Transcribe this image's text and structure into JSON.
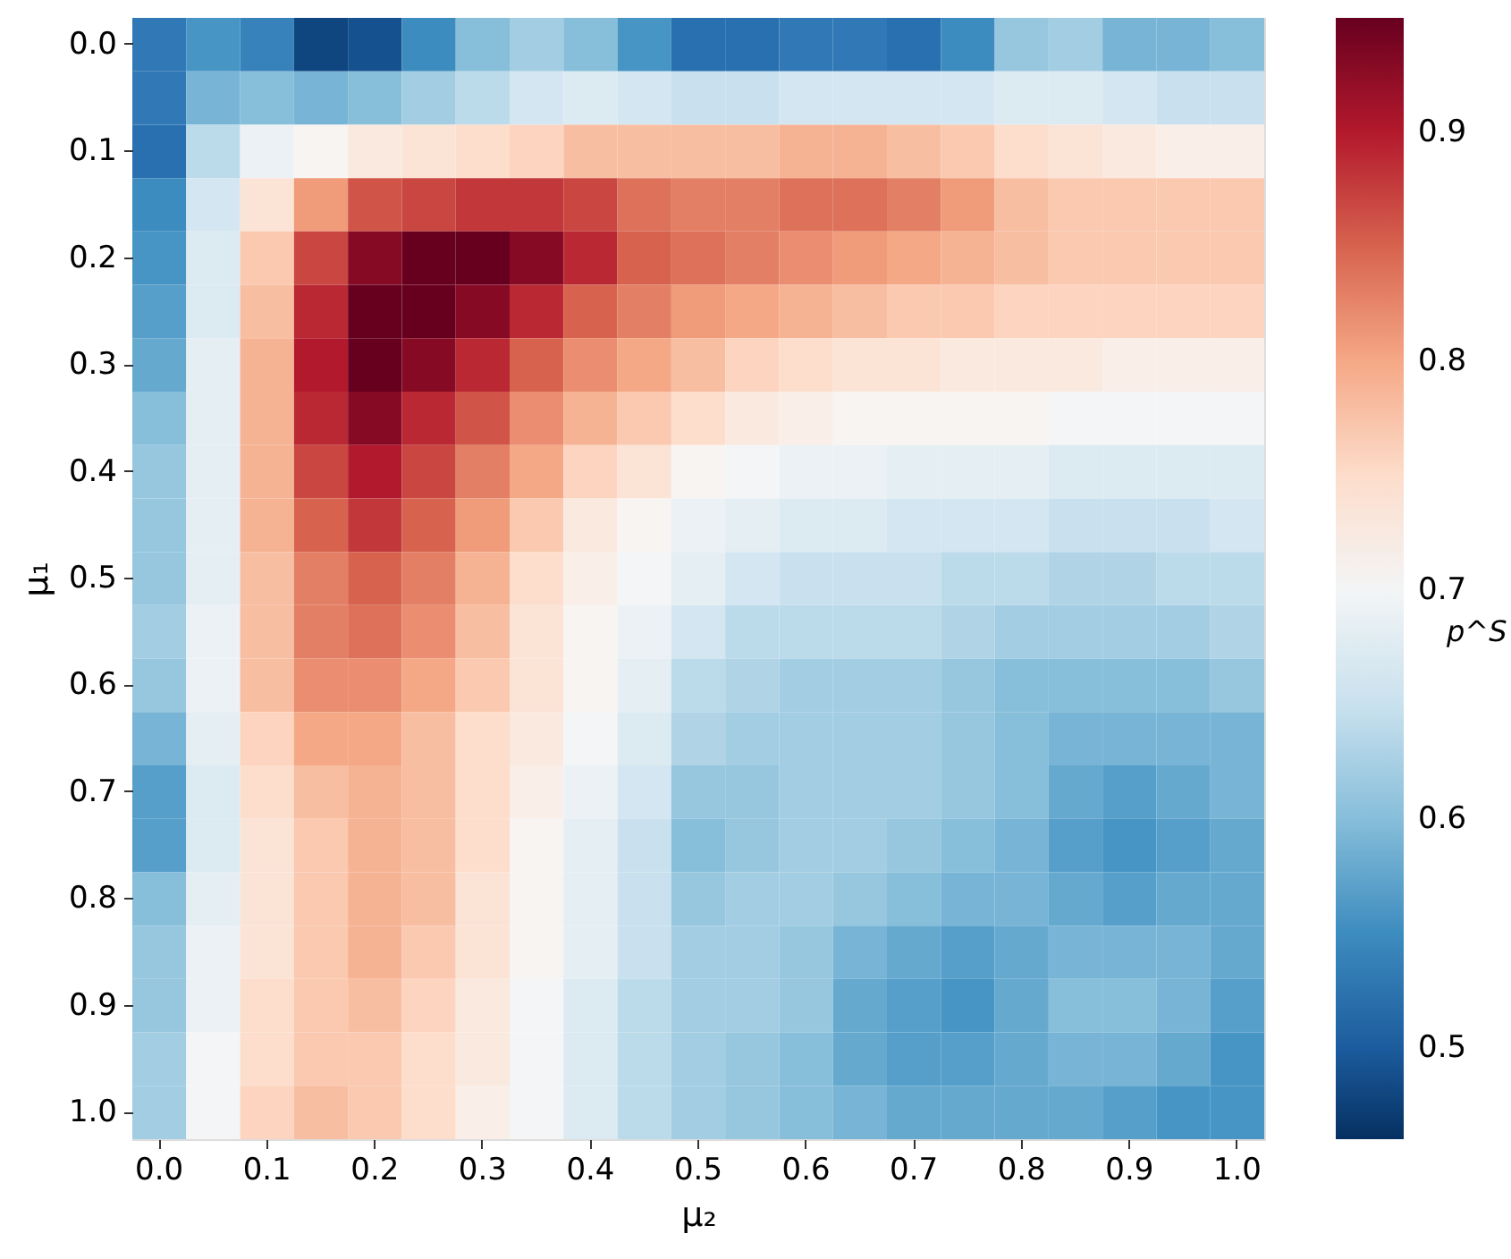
{
  "chart_data": {
    "type": "heatmap",
    "xlabel": "μ₂",
    "ylabel": "μ₁",
    "clabel": "p^S",
    "categories": [
      "0.0",
      null,
      "0.1",
      null,
      "0.2",
      null,
      "0.3",
      null,
      "0.4",
      null,
      "0.5",
      null,
      "0.6",
      null,
      "0.7",
      null,
      "0.8",
      null,
      "0.9",
      null,
      "1.0"
    ],
    "y_categories": [
      "0.0",
      null,
      "0.1",
      null,
      "0.2",
      null,
      "0.3",
      null,
      "0.4",
      null,
      "0.5",
      null,
      "0.6",
      null,
      "0.7",
      null,
      "0.8",
      null,
      "0.9",
      null,
      "1.0"
    ],
    "clim": [
      0.46,
      0.95
    ],
    "cticks": [
      0.5,
      0.6,
      0.7,
      0.8,
      0.9
    ],
    "cells": [
      [
        0.53,
        0.56,
        0.54,
        0.48,
        0.49,
        0.55,
        0.6,
        0.62,
        0.6,
        0.56,
        0.52,
        0.52,
        0.53,
        0.53,
        0.52,
        0.55,
        0.61,
        0.62,
        0.59,
        0.59,
        0.6
      ],
      [
        0.53,
        0.59,
        0.6,
        0.59,
        0.6,
        0.62,
        0.64,
        0.66,
        0.67,
        0.66,
        0.65,
        0.65,
        0.66,
        0.66,
        0.66,
        0.66,
        0.67,
        0.67,
        0.66,
        0.65,
        0.65
      ],
      [
        0.52,
        0.64,
        0.69,
        0.71,
        0.73,
        0.74,
        0.75,
        0.76,
        0.78,
        0.78,
        0.78,
        0.78,
        0.79,
        0.79,
        0.78,
        0.77,
        0.75,
        0.74,
        0.73,
        0.72,
        0.72
      ],
      [
        0.55,
        0.66,
        0.74,
        0.81,
        0.86,
        0.87,
        0.88,
        0.88,
        0.87,
        0.84,
        0.83,
        0.83,
        0.84,
        0.84,
        0.83,
        0.81,
        0.78,
        0.77,
        0.77,
        0.77,
        0.77
      ],
      [
        0.56,
        0.67,
        0.77,
        0.87,
        0.93,
        0.95,
        0.95,
        0.93,
        0.89,
        0.85,
        0.84,
        0.83,
        0.82,
        0.81,
        0.8,
        0.79,
        0.78,
        0.77,
        0.77,
        0.77,
        0.77
      ],
      [
        0.57,
        0.67,
        0.78,
        0.89,
        0.95,
        0.95,
        0.93,
        0.89,
        0.85,
        0.83,
        0.81,
        0.8,
        0.79,
        0.78,
        0.77,
        0.77,
        0.76,
        0.76,
        0.76,
        0.76,
        0.76
      ],
      [
        0.58,
        0.68,
        0.79,
        0.9,
        0.95,
        0.93,
        0.89,
        0.85,
        0.82,
        0.8,
        0.78,
        0.76,
        0.75,
        0.74,
        0.74,
        0.73,
        0.73,
        0.73,
        0.72,
        0.72,
        0.72
      ],
      [
        0.6,
        0.68,
        0.79,
        0.89,
        0.93,
        0.89,
        0.86,
        0.82,
        0.79,
        0.77,
        0.75,
        0.73,
        0.72,
        0.71,
        0.71,
        0.71,
        0.71,
        0.7,
        0.7,
        0.7,
        0.7
      ],
      [
        0.61,
        0.68,
        0.79,
        0.87,
        0.9,
        0.87,
        0.83,
        0.8,
        0.76,
        0.74,
        0.71,
        0.7,
        0.69,
        0.69,
        0.68,
        0.68,
        0.68,
        0.67,
        0.67,
        0.67,
        0.67
      ],
      [
        0.61,
        0.68,
        0.79,
        0.85,
        0.88,
        0.85,
        0.81,
        0.77,
        0.73,
        0.71,
        0.69,
        0.68,
        0.67,
        0.67,
        0.66,
        0.66,
        0.66,
        0.65,
        0.65,
        0.65,
        0.66
      ],
      [
        0.61,
        0.68,
        0.78,
        0.83,
        0.85,
        0.83,
        0.79,
        0.75,
        0.72,
        0.7,
        0.68,
        0.66,
        0.65,
        0.65,
        0.65,
        0.64,
        0.64,
        0.63,
        0.63,
        0.64,
        0.64
      ],
      [
        0.62,
        0.69,
        0.78,
        0.83,
        0.84,
        0.82,
        0.78,
        0.74,
        0.71,
        0.69,
        0.66,
        0.64,
        0.64,
        0.64,
        0.64,
        0.63,
        0.62,
        0.62,
        0.62,
        0.62,
        0.63
      ],
      [
        0.61,
        0.69,
        0.78,
        0.82,
        0.82,
        0.8,
        0.77,
        0.74,
        0.71,
        0.68,
        0.64,
        0.63,
        0.62,
        0.62,
        0.62,
        0.61,
        0.6,
        0.6,
        0.6,
        0.6,
        0.61
      ],
      [
        0.59,
        0.68,
        0.76,
        0.8,
        0.8,
        0.78,
        0.75,
        0.73,
        0.7,
        0.67,
        0.63,
        0.62,
        0.62,
        0.62,
        0.62,
        0.61,
        0.6,
        0.59,
        0.59,
        0.59,
        0.59
      ],
      [
        0.57,
        0.67,
        0.75,
        0.78,
        0.79,
        0.78,
        0.75,
        0.72,
        0.69,
        0.66,
        0.61,
        0.61,
        0.62,
        0.62,
        0.62,
        0.61,
        0.6,
        0.58,
        0.57,
        0.58,
        0.59
      ],
      [
        0.57,
        0.67,
        0.74,
        0.77,
        0.79,
        0.78,
        0.75,
        0.71,
        0.68,
        0.65,
        0.6,
        0.61,
        0.62,
        0.62,
        0.61,
        0.6,
        0.59,
        0.57,
        0.56,
        0.57,
        0.58
      ],
      [
        0.6,
        0.68,
        0.74,
        0.77,
        0.79,
        0.78,
        0.74,
        0.71,
        0.68,
        0.65,
        0.61,
        0.62,
        0.62,
        0.61,
        0.6,
        0.59,
        0.59,
        0.58,
        0.57,
        0.58,
        0.58
      ],
      [
        0.61,
        0.69,
        0.74,
        0.77,
        0.79,
        0.77,
        0.74,
        0.71,
        0.68,
        0.65,
        0.62,
        0.62,
        0.61,
        0.59,
        0.58,
        0.57,
        0.58,
        0.59,
        0.59,
        0.59,
        0.58
      ],
      [
        0.61,
        0.69,
        0.75,
        0.77,
        0.78,
        0.76,
        0.73,
        0.7,
        0.67,
        0.64,
        0.62,
        0.62,
        0.61,
        0.58,
        0.57,
        0.56,
        0.58,
        0.6,
        0.6,
        0.59,
        0.57
      ],
      [
        0.62,
        0.7,
        0.75,
        0.77,
        0.77,
        0.75,
        0.73,
        0.7,
        0.67,
        0.64,
        0.62,
        0.61,
        0.6,
        0.58,
        0.57,
        0.57,
        0.58,
        0.59,
        0.59,
        0.58,
        0.56
      ],
      [
        0.62,
        0.7,
        0.76,
        0.78,
        0.77,
        0.75,
        0.72,
        0.7,
        0.67,
        0.64,
        0.62,
        0.61,
        0.6,
        0.59,
        0.58,
        0.58,
        0.58,
        0.58,
        0.57,
        0.56,
        0.56
      ]
    ]
  }
}
